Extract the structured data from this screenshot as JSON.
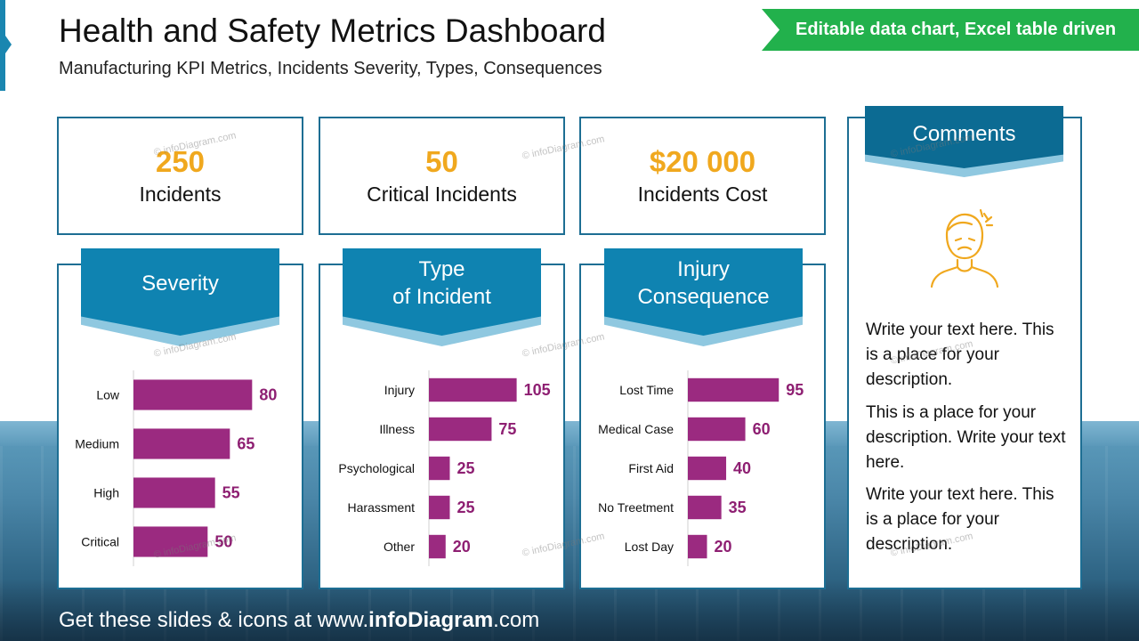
{
  "header": {
    "title": "Health and Safety Metrics Dashboard",
    "subtitle": "Manufacturing KPI Metrics, Incidents Severity, Types, Consequences",
    "banner": "Editable data chart, Excel table driven"
  },
  "kpis": [
    {
      "value": "250",
      "label": "Incidents"
    },
    {
      "value": "50",
      "label": "Critical Incidents"
    },
    {
      "value": "$20 000",
      "label": "Incidents Cost"
    }
  ],
  "panels": [
    {
      "title_lines": [
        "Severity"
      ]
    },
    {
      "title_lines": [
        "Type",
        "of Incident"
      ]
    },
    {
      "title_lines": [
        "Injury",
        "Consequence"
      ]
    }
  ],
  "comments": {
    "title": "Comments",
    "icon": "person-headache-icon",
    "paragraphs": [
      "Write your text here. This is a place for your description.",
      "This is a place for your description. Write your text here.",
      "Write your text here. This is a place for your description."
    ]
  },
  "watermark": "© infoDiagram.com",
  "footer": {
    "prefix": "Get these slides & icons at www.",
    "brand": "infoDiagram",
    "suffix": ".com"
  },
  "colors": {
    "kpi_value": "#f0a81e",
    "bar": "#9b2a80",
    "ribbon": "#0f83b1",
    "banner": "#22b14c",
    "border": "#1d6e93"
  },
  "chart_data": [
    {
      "type": "bar",
      "orientation": "horizontal",
      "title": "Severity",
      "categories": [
        "Low",
        "Medium",
        "High",
        "Critical"
      ],
      "values": [
        80,
        65,
        55,
        50
      ],
      "xlim": [
        0,
        90
      ]
    },
    {
      "type": "bar",
      "orientation": "horizontal",
      "title": "Type of Incident",
      "categories": [
        "Injury",
        "Illness",
        "Psychological",
        "Harassment",
        "Other"
      ],
      "values": [
        105,
        75,
        25,
        25,
        20
      ],
      "xlim": [
        0,
        115
      ]
    },
    {
      "type": "bar",
      "orientation": "horizontal",
      "title": "Injury Consequence",
      "categories": [
        "Lost Time",
        "Medical Case",
        "First Aid",
        "No Treetment",
        "Lost Day"
      ],
      "values": [
        95,
        60,
        40,
        35,
        20
      ],
      "xlim": [
        0,
        105
      ]
    }
  ]
}
